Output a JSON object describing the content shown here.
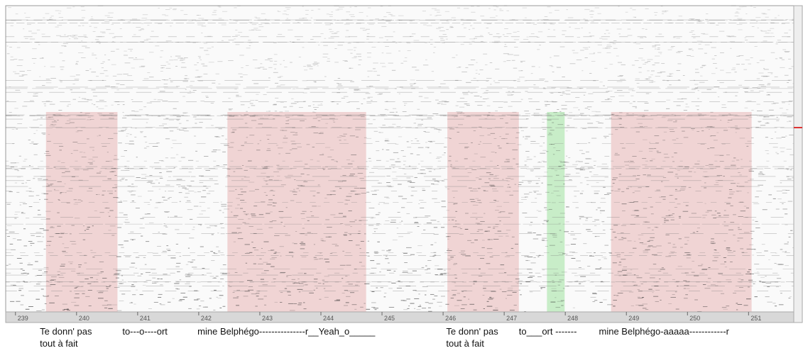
{
  "chart_data": {
    "type": "spectrogram",
    "xlim": [
      238.84,
      251.74
    ],
    "xticks": [
      239,
      240,
      241,
      242,
      243,
      244,
      245,
      246,
      247,
      248,
      249,
      250,
      251
    ],
    "regions": [
      {
        "start": 239.5,
        "end": 240.67,
        "color": "#e8b4b4"
      },
      {
        "start": 242.47,
        "end": 244.74,
        "color": "#e8b4b4"
      },
      {
        "start": 246.07,
        "end": 247.24,
        "color": "#e8b4b4"
      },
      {
        "start": 247.7,
        "end": 247.99,
        "color": "#9fe29f"
      },
      {
        "start": 248.75,
        "end": 251.05,
        "color": "#e8b4b4"
      }
    ],
    "annotations": [
      {
        "x": 239.4,
        "lines": [
          "Te donn' pas",
          "tout à fait"
        ]
      },
      {
        "x": 240.75,
        "lines": [
          "to---o----ort"
        ]
      },
      {
        "x": 241.98,
        "lines": [
          "mine Belphégo---------------r__Yeah_o_____"
        ]
      },
      {
        "x": 246.05,
        "lines": [
          "Te donn' pas",
          "tout à fait"
        ]
      },
      {
        "x": 247.24,
        "lines": [
          "to___ort -------"
        ]
      },
      {
        "x": 248.55,
        "lines": [
          "mine Belphégo-aaaaa------------r"
        ]
      }
    ]
  }
}
